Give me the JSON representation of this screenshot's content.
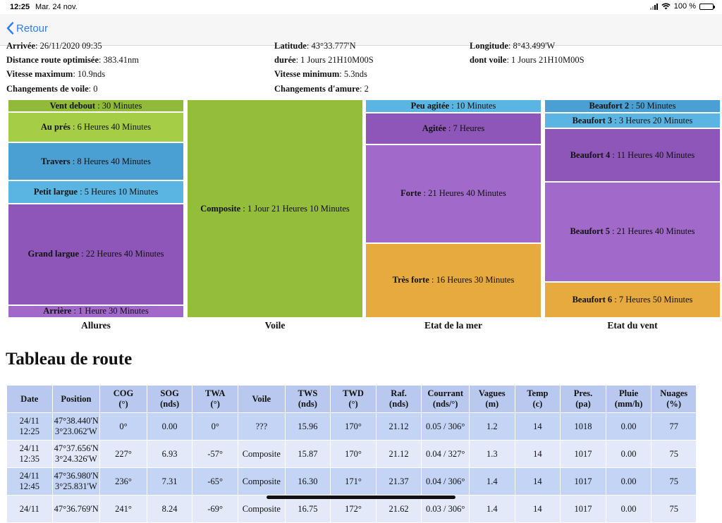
{
  "status_bar": {
    "time": "12:25",
    "date": "Mar. 24 nov.",
    "battery": "100 %"
  },
  "nav": {
    "back_label": "Retour"
  },
  "info": {
    "rows": [
      [
        {
          "label": "Arrivée",
          "value": "26/11/2020 09:35"
        },
        {
          "label": "Latitude",
          "value": "43°33.777'N"
        },
        {
          "label": "Longitude",
          "value": "8°43.499'W"
        }
      ],
      [
        {
          "label": "Distance route optimisée",
          "value": "383.41nm"
        },
        {
          "label": "durée",
          "value": "1 Jours 21H10M00S"
        },
        {
          "label": "dont voile",
          "value": "1 Jours 21H10M00S"
        }
      ],
      [
        {
          "label": "Vitesse maximum",
          "value": "10.9nds"
        },
        {
          "label": "Vitesse minimum",
          "value": "5.3nds"
        },
        null
      ],
      [
        {
          "label": "Changements de voile",
          "value": "0"
        },
        {
          "label": "Changements d'amure",
          "value": "2"
        },
        null
      ]
    ]
  },
  "treemaps": [
    {
      "title": "Allures",
      "items": [
        {
          "name": "Vent debout",
          "duration": "30 Minutes",
          "minutes": 30,
          "color": "#8fba3a"
        },
        {
          "name": "Au prés",
          "duration": "6 Heures 40 Minutes",
          "minutes": 400,
          "color": "#a6cd46"
        },
        {
          "name": "Travers",
          "duration": "8 Heures 40 Minutes",
          "minutes": 520,
          "color": "#4aa0d3"
        },
        {
          "name": "Petit largue",
          "duration": "5 Heures 10 Minutes",
          "minutes": 310,
          "color": "#5ab5e2"
        },
        {
          "name": "Grand largue",
          "duration": "22 Heures 40 Minutes",
          "minutes": 1360,
          "color": "#8d56b8"
        },
        {
          "name": "Arrière",
          "duration": "1 Heure 30 Minutes",
          "minutes": 90,
          "color": "#a167c9"
        }
      ]
    },
    {
      "title": "Voile",
      "items": [
        {
          "name": "Composite",
          "duration": "1 Jour 21 Heures 10 Minutes",
          "minutes": 2710,
          "color": "#94bd3c"
        }
      ]
    },
    {
      "title": "Etat de la mer",
      "items": [
        {
          "name": "Peu agitée",
          "duration": "10 Minutes",
          "minutes": 10,
          "color": "#5ab5e2"
        },
        {
          "name": "Agitée",
          "duration": "7 Heures",
          "minutes": 420,
          "color": "#8d56b8"
        },
        {
          "name": "Forte",
          "duration": "21 Heures 40 Minutes",
          "minutes": 1300,
          "color": "#a169ca"
        },
        {
          "name": "Très forte",
          "duration": "16 Heures 30 Minutes",
          "minutes": 990,
          "color": "#e6aa3e"
        }
      ]
    },
    {
      "title": "Etat du vent",
      "items": [
        {
          "name": "Beaufort 2",
          "duration": "50 Minutes",
          "minutes": 50,
          "color": "#4aa0d3"
        },
        {
          "name": "Beaufort 3",
          "duration": "3 Heures 20 Minutes",
          "minutes": 200,
          "color": "#5ab5e2"
        },
        {
          "name": "Beaufort 4",
          "duration": "11 Heures 40 Minutes",
          "minutes": 700,
          "color": "#8d56b8"
        },
        {
          "name": "Beaufort 5",
          "duration": "21 Heures 40 Minutes",
          "minutes": 1300,
          "color": "#a169ca"
        },
        {
          "name": "Beaufort 6",
          "duration": "7 Heures 50 Minutes",
          "minutes": 470,
          "color": "#e6aa3e"
        }
      ]
    }
  ],
  "route_table": {
    "title": "Tableau de route",
    "headers": [
      {
        "top": "Date",
        "bottom": ""
      },
      {
        "top": "Position",
        "bottom": ""
      },
      {
        "top": "COG",
        "bottom": "(°)"
      },
      {
        "top": "SOG",
        "bottom": "(nds)"
      },
      {
        "top": "TWA",
        "bottom": "(°)"
      },
      {
        "top": "Voile",
        "bottom": ""
      },
      {
        "top": "TWS",
        "bottom": "(nds)"
      },
      {
        "top": "TWD",
        "bottom": "(°)"
      },
      {
        "top": "Raf.",
        "bottom": "(nds)"
      },
      {
        "top": "Courrant",
        "bottom": "(nds/°)"
      },
      {
        "top": "Vagues",
        "bottom": "(m)"
      },
      {
        "top": "Temp",
        "bottom": "(c)"
      },
      {
        "top": "Pres.",
        "bottom": "(pa)"
      },
      {
        "top": "Pluie",
        "bottom": "(mm/h)"
      },
      {
        "top": "Nuages",
        "bottom": "(%)"
      }
    ],
    "rows": [
      [
        [
          "24/11",
          "12:25"
        ],
        [
          "47°38.440'N",
          "3°23.062'W"
        ],
        "0°",
        "0.00",
        "0°",
        "???",
        "15.96",
        "170°",
        "21.12",
        "0.05 / 306°",
        "1.2",
        "14",
        "1018",
        "0.00",
        "77"
      ],
      [
        [
          "24/11",
          "12:35"
        ],
        [
          "47°37.656'N",
          "3°24.326'W"
        ],
        "227°",
        "6.93",
        "-57°",
        "Composite",
        "15.87",
        "170°",
        "21.12",
        "0.04 / 327°",
        "1.3",
        "14",
        "1017",
        "0.00",
        "75"
      ],
      [
        [
          "24/11",
          "12:45"
        ],
        [
          "47°36.980'N",
          "3°25.831'W"
        ],
        "236°",
        "7.31",
        "-65°",
        "Composite",
        "16.30",
        "171°",
        "21.37",
        "0.04 / 306°",
        "1.4",
        "14",
        "1017",
        "0.00",
        "75"
      ],
      [
        [
          "24/11",
          ""
        ],
        [
          "47°36.769'N",
          ""
        ],
        "241°",
        "8.24",
        "-69°",
        "Composite",
        "16.75",
        "172°",
        "21.62",
        "0.03 / 306°",
        "1.4",
        "14",
        "1017",
        "0.00",
        "75"
      ]
    ]
  }
}
